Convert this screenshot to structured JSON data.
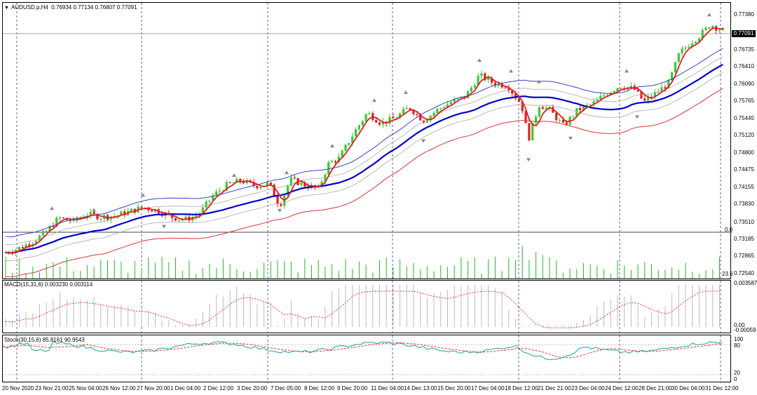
{
  "symbol": {
    "name": "AUDUSD.p,H4",
    "values": "0.76934 0.77134 0.76807 0.77091"
  },
  "price_axis": [
    "0.77380",
    "0.77091",
    "0.76735",
    "0.76410",
    "0.76090",
    "0.75765",
    "0.75445",
    "0.75120",
    "0.74800",
    "0.74475",
    "0.74155",
    "0.73830",
    "0.73510",
    "0.73185",
    "0.72865",
    "0.72540"
  ],
  "current_price": "0.77091",
  "volume_labels": {
    "top": "0.0",
    "bottom": "23.6"
  },
  "macd": {
    "label": "MACD(15,31,6) 0.003230 0.003114",
    "axis_top": "0.003587",
    "axis_zero": "0.00",
    "axis_bottom": "-0.00059"
  },
  "stoch": {
    "label": "Stoch(30,15,6) 85.8161 90.9543",
    "levels": [
      "100",
      "80",
      "20",
      "0"
    ]
  },
  "time_axis": [
    "20 Nov 2020",
    "23 Nov 21:00",
    "25 Nov 04:00",
    "26 Nov 12:00",
    "27 Nov 20:00",
    "1 Dec 04:00",
    "2 Dec 12:00",
    "3 Dec 20:00",
    "7 Dec 05:00",
    "8 Dec 12:00",
    "9 Dec 20:00",
    "11 Dec 04:00",
    "14 Dec 13:00",
    "15 Dec 20:00",
    "17 Dec 04:00",
    "18 Dec 12:00",
    "21 Dec 21:00",
    "23 Dec 04:00",
    "24 Dec 12:00",
    "28 Dec 21:00",
    "30 Dec 04:00",
    "31 Dec 12:00"
  ],
  "colors": {
    "bull": "#33cc33",
    "bear": "#e02020",
    "ma_main": "#0000cc",
    "band_upper": "#3344cc",
    "band_lower": "#dd3333",
    "env": "#aaaaaa",
    "volume": "#22bb22",
    "signal": "#ee3333",
    "stoch_main": "#20a0a0"
  },
  "chart_data": {
    "type": "candlestick",
    "symbol": "AUDUSD.p",
    "timeframe": "H4",
    "last_ohlc": {
      "open": 0.76934,
      "high": 0.77134,
      "low": 0.76807,
      "close": 0.77091
    },
    "ylim": [
      0.7254,
      0.7738
    ],
    "close_path": [
      [
        0,
        0.7292
      ],
      [
        20,
        0.73
      ],
      [
        40,
        0.7312
      ],
      [
        60,
        0.733
      ],
      [
        80,
        0.7358
      ],
      [
        100,
        0.7352
      ],
      [
        120,
        0.7365
      ],
      [
        140,
        0.736
      ],
      [
        160,
        0.7362
      ],
      [
        180,
        0.737
      ],
      [
        200,
        0.7378
      ],
      [
        220,
        0.7372
      ],
      [
        240,
        0.736
      ],
      [
        260,
        0.7355
      ],
      [
        280,
        0.7365
      ],
      [
        300,
        0.74
      ],
      [
        320,
        0.742
      ],
      [
        340,
        0.7428
      ],
      [
        360,
        0.7418
      ],
      [
        380,
        0.7422
      ],
      [
        395,
        0.738
      ],
      [
        410,
        0.743
      ],
      [
        430,
        0.742
      ],
      [
        450,
        0.7412
      ],
      [
        465,
        0.746
      ],
      [
        480,
        0.747
      ],
      [
        500,
        0.7515
      ],
      [
        520,
        0.7555
      ],
      [
        540,
        0.7535
      ],
      [
        560,
        0.7545
      ],
      [
        580,
        0.7565
      ],
      [
        600,
        0.754
      ],
      [
        620,
        0.756
      ],
      [
        640,
        0.7575
      ],
      [
        660,
        0.7585
      ],
      [
        680,
        0.7625
      ],
      [
        700,
        0.761
      ],
      [
        720,
        0.7605
      ],
      [
        740,
        0.757
      ],
      [
        750,
        0.7505
      ],
      [
        765,
        0.757
      ],
      [
        780,
        0.756
      ],
      [
        800,
        0.753
      ],
      [
        820,
        0.756
      ],
      [
        840,
        0.757
      ],
      [
        860,
        0.759
      ],
      [
        880,
        0.7605
      ],
      [
        900,
        0.76
      ],
      [
        915,
        0.7575
      ],
      [
        930,
        0.759
      ],
      [
        950,
        0.761
      ],
      [
        965,
        0.7665
      ],
      [
        980,
        0.7685
      ],
      [
        995,
        0.77
      ],
      [
        1010,
        0.772
      ],
      [
        1025,
        0.7709
      ]
    ]
  }
}
